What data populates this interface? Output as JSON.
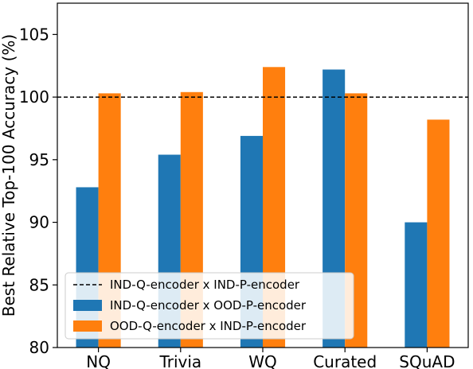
{
  "chart_data": {
    "type": "bar",
    "title": "",
    "xlabel": "",
    "ylabel": "Best Relative Top-100 Accuracy (%)",
    "categories": [
      "NQ",
      "Trivia",
      "WQ",
      "Curated",
      "SQuAD"
    ],
    "ylim": [
      80,
      107.5
    ],
    "yticks": [
      80,
      85,
      90,
      95,
      100,
      105
    ],
    "grid": false,
    "legend_position": "lower-left",
    "reference_line": {
      "name": "IND-Q-encoder x IND-P-encoder",
      "value": 100,
      "style": "dashed",
      "color": "#000000"
    },
    "series": [
      {
        "name": "IND-Q-encoder x OOD-P-encoder",
        "color": "#1f77b4",
        "values": [
          92.8,
          95.4,
          96.9,
          102.2,
          90.0
        ]
      },
      {
        "name": "OOD-Q-encoder x IND-P-encoder",
        "color": "#ff7f0e",
        "values": [
          100.3,
          100.4,
          102.4,
          100.3,
          98.2
        ]
      }
    ]
  }
}
